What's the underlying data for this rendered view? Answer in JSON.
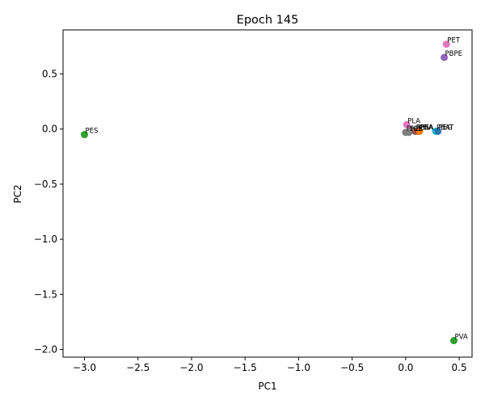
{
  "chart_data": {
    "type": "scatter",
    "title": "Epoch 145",
    "xlabel": "PC1",
    "ylabel": "PC2",
    "xlim": [
      -3.2,
      0.62
    ],
    "ylim": [
      -2.07,
      0.9
    ],
    "xticks": [
      -3.0,
      -2.5,
      -2.0,
      -1.5,
      -1.0,
      -0.5,
      0.0,
      0.5
    ],
    "yticks": [
      0.5,
      0.0,
      -0.5,
      -1.0,
      -1.5,
      -2.0
    ],
    "xtick_labels": [
      "−3.0",
      "−2.5",
      "−2.0",
      "−1.5",
      "−1.0",
      "−0.5",
      "0.0",
      "0.5"
    ],
    "ytick_labels": [
      "0.5",
      "0.0",
      "−0.5",
      "−1.0",
      "−1.5",
      "−2.0"
    ],
    "grid": false,
    "points": [
      {
        "label": "PES",
        "x": -3.0,
        "y": -0.05,
        "color": "#2ca02c"
      },
      {
        "label": "PET",
        "x": 0.38,
        "y": 0.77,
        "color": "#e377c2"
      },
      {
        "label": "PBPE",
        "x": 0.36,
        "y": 0.65,
        "color": "#9467bd"
      },
      {
        "label": "PVA",
        "x": 0.45,
        "y": -1.92,
        "color": "#2ca02c"
      },
      {
        "label": "PLA",
        "x": 0.01,
        "y": 0.04,
        "color": "#e377c2"
      },
      {
        "label": "PHB",
        "x": 0.0,
        "y": -0.03,
        "color": "#7f7f7f"
      },
      {
        "label": "PCL",
        "x": 0.03,
        "y": -0.03,
        "color": "#7f7f7f"
      },
      {
        "label": "PBS",
        "x": 0.09,
        "y": -0.02,
        "color": "#8c564b"
      },
      {
        "label": "PBA",
        "x": 0.12,
        "y": -0.02,
        "color": "#d62728"
      },
      {
        "label": "PEA",
        "x": 0.13,
        "y": -0.02,
        "color": "#ff7f0e"
      },
      {
        "label": "PBAT",
        "x": 0.28,
        "y": -0.02,
        "color": "#17becf"
      },
      {
        "label": "PEG",
        "x": 0.3,
        "y": -0.02,
        "color": "#1f77b4"
      }
    ]
  }
}
